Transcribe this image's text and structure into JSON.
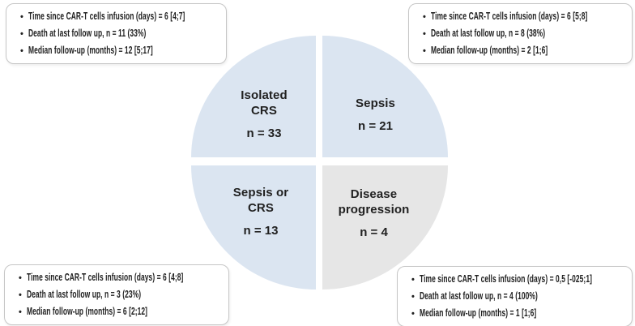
{
  "colors": {
    "background": "#ffffff",
    "quadrant_blue": "#dbe5f1",
    "quadrant_gray": "#e6e6e6",
    "box_border": "#c6c6c6",
    "text": "#212121"
  },
  "icons": {
    "bullet": "•"
  },
  "chart": {
    "type": "quadrant-pie",
    "quadrants": [
      {
        "name": "Isolated CRS",
        "label": "Isolated\nCRS",
        "n": "n = 33",
        "count": 33,
        "color": "#dbe5f1",
        "position": "top-left"
      },
      {
        "name": "Sepsis",
        "label": "Sepsis",
        "n": "n = 21",
        "count": 21,
        "color": "#dbe5f1",
        "position": "top-right"
      },
      {
        "name": "Sepsis or CRS",
        "label": "Sepsis or\nCRS",
        "n": "n = 13",
        "count": 13,
        "color": "#dbe5f1",
        "position": "bottom-left"
      },
      {
        "name": "Disease progression",
        "label": "Disease\nprogression",
        "n": "n = 4",
        "count": 4,
        "color": "#e6e6e6",
        "position": "bottom-right"
      }
    ]
  },
  "callouts": {
    "top_left": {
      "bullets": [
        "Time since CAR-T cells infusion (days) = 6 [4;7]",
        "Death at last follow up, n = 11 (33%)",
        "Median follow-up (months) = 12 [5;17]"
      ]
    },
    "top_right": {
      "bullets": [
        "Time since CAR-T cells infusion (days) = 6 [5;8]",
        "Death at last follow up, n = 8 (38%)",
        "Median follow-up (months) = 2 [1;6]"
      ]
    },
    "bottom_left": {
      "bullets": [
        "Time since CAR-T cells infusion (days) = 6 [4;8]",
        "Death at last follow up, n = 3 (23%)",
        "Median follow-up (months) = 6 [2;12]"
      ]
    },
    "bottom_right": {
      "bullets": [
        "Time since CAR-T cells infusion (days) = 0,5 [-025;1]",
        "Death at last follow up, n = 4 (100%)",
        "Median follow-up (months) = 1 [1;6]"
      ]
    }
  }
}
